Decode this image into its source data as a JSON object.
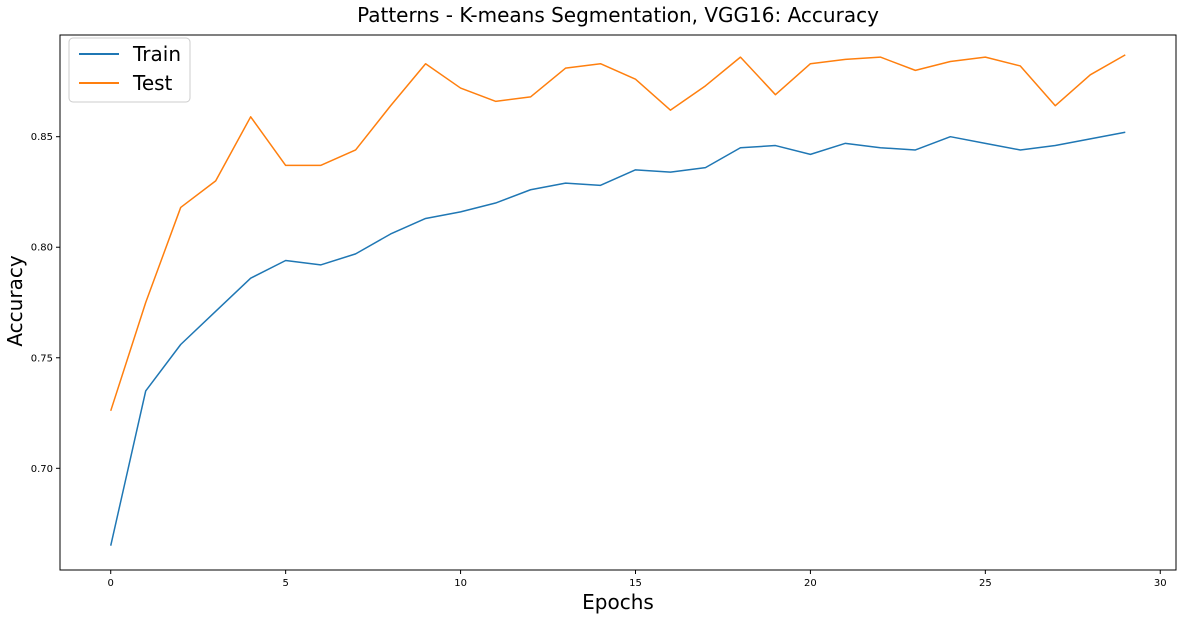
{
  "chart_data": {
    "type": "line",
    "title": "Patterns - K-means Segmentation, VGG16: Accuracy",
    "xlabel": "Epochs",
    "ylabel": "Accuracy",
    "xlim": [
      -1.45,
      30.45
    ],
    "ylim": [
      0.654,
      0.896
    ],
    "xticks": [
      0,
      5,
      10,
      15,
      20,
      25,
      30
    ],
    "yticks": [
      0.7,
      0.75,
      0.8,
      0.85
    ],
    "ytick_labels": [
      "0.70",
      "0.75",
      "0.80",
      "0.85"
    ],
    "grid": false,
    "legend_position": "top-left",
    "x": [
      0,
      1,
      2,
      3,
      4,
      5,
      6,
      7,
      8,
      9,
      10,
      11,
      12,
      13,
      14,
      15,
      16,
      17,
      18,
      19,
      20,
      21,
      22,
      23,
      24,
      25,
      26,
      27,
      28,
      29
    ],
    "series": [
      {
        "name": "Train",
        "color": "#1f77b4",
        "values": [
          0.665,
          0.735,
          0.756,
          0.771,
          0.786,
          0.794,
          0.792,
          0.797,
          0.806,
          0.813,
          0.816,
          0.82,
          0.826,
          0.829,
          0.828,
          0.835,
          0.834,
          0.836,
          0.845,
          0.846,
          0.842,
          0.847,
          0.845,
          0.844,
          0.85,
          0.847,
          0.844,
          0.846,
          0.849,
          0.852
        ]
      },
      {
        "name": "Test",
        "color": "#ff7f0e",
        "values": [
          0.726,
          0.775,
          0.818,
          0.83,
          0.859,
          0.837,
          0.837,
          0.844,
          0.864,
          0.883,
          0.872,
          0.866,
          0.868,
          0.881,
          0.883,
          0.876,
          0.862,
          0.873,
          0.886,
          0.869,
          0.883,
          0.885,
          0.886,
          0.88,
          0.884,
          0.886,
          0.882,
          0.864,
          0.878,
          0.887
        ]
      }
    ]
  }
}
